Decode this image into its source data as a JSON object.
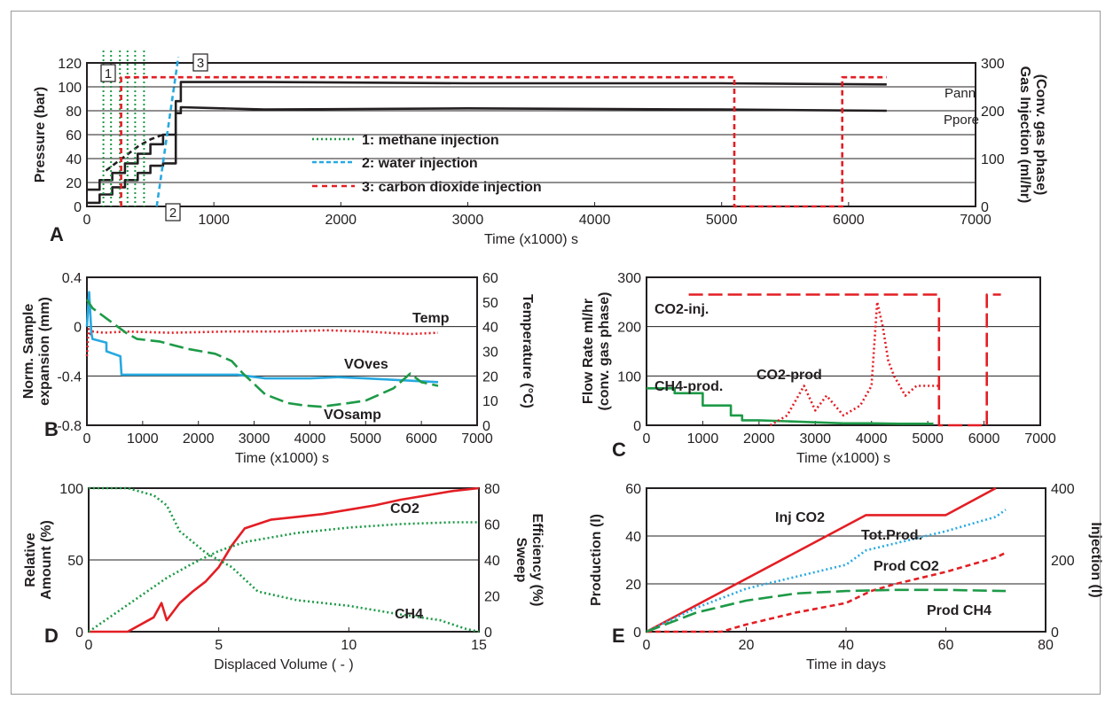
{
  "colors": {
    "black": "#231f20",
    "green": "#1d9a47",
    "cyan": "#27a9e1",
    "red": "#e31e24",
    "grid": "#231f20"
  },
  "chart_data": [
    {
      "panel": "A",
      "type": "line",
      "xlabel": "Time (x1000) s",
      "ylabel": "Pressure (bar)",
      "y2label": [
        "Gas Injection (ml/hr)",
        "(Conv. gas phase)"
      ],
      "xlim": [
        0,
        7000
      ],
      "ylim": [
        0,
        120
      ],
      "y2lim": [
        0,
        300
      ],
      "xticks": [
        "0",
        "1000",
        "2000",
        "3000",
        "4000",
        "5000",
        "6000",
        "7000"
      ],
      "yticks": [
        "0",
        "20",
        "40",
        "60",
        "80",
        "100",
        "120"
      ],
      "y2ticks": [
        "0",
        "100",
        "200",
        "300"
      ],
      "legend": [
        {
          "text": "1: methane injection",
          "color": "#1d9a47"
        },
        {
          "text": "2: water injection",
          "color": "#6b8cc7"
        },
        {
          "text": "3: carbon dioxide injection",
          "color": "#e31e24"
        }
      ],
      "annotations": [
        "1",
        "2",
        "3",
        "Pann",
        "Ppore"
      ],
      "series": [
        {
          "name": "Pann",
          "color": "#231f20",
          "style": "solid",
          "x": [
            0,
            100,
            100,
            200,
            200,
            300,
            300,
            400,
            400,
            500,
            500,
            600,
            600,
            700,
            700,
            740,
            740,
            1400,
            3000,
            5000,
            6300
          ],
          "y": [
            14,
            14,
            22,
            22,
            28,
            28,
            36,
            36,
            44,
            44,
            52,
            52,
            60,
            60,
            88,
            88,
            104,
            104,
            103,
            103,
            102
          ]
        },
        {
          "name": "Ppore",
          "color": "#231f20",
          "style": "solid",
          "x": [
            0,
            100,
            100,
            200,
            200,
            300,
            300,
            400,
            400,
            500,
            500,
            600,
            600,
            700,
            700,
            740,
            740,
            1400,
            3000,
            5000,
            6300
          ],
          "y": [
            3,
            3,
            10,
            10,
            16,
            16,
            22,
            22,
            28,
            28,
            34,
            34,
            36,
            36,
            78,
            78,
            83,
            81,
            82,
            81,
            80
          ]
        },
        {
          "name": "Pann-dashed",
          "color": "#231f20",
          "style": "dash",
          "x": [
            150,
            200,
            250,
            300,
            350,
            400,
            450,
            500,
            550,
            600
          ],
          "y": [
            30,
            34,
            38,
            42,
            46,
            50,
            53,
            56,
            58,
            60
          ]
        },
        {
          "name": "methane injection",
          "color": "#1d9a47",
          "style": "dot",
          "vlines": [
            130,
            190,
            260,
            320,
            380,
            450
          ]
        },
        {
          "name": "water injection",
          "color": "#27a9e1",
          "style": "dash",
          "x": [
            550,
            720
          ],
          "y": [
            0,
            125
          ]
        },
        {
          "name": "carbon dioxide injection",
          "color": "#e31e24",
          "style": "dash",
          "y2": true,
          "x": [
            270,
            270,
            5100,
            5100,
            5950,
            5950,
            6300
          ],
          "y": [
            0,
            270,
            270,
            0,
            0,
            270,
            270
          ]
        }
      ]
    },
    {
      "panel": "B",
      "type": "line",
      "xlabel": "Time (x1000) s",
      "ylabel": [
        "Norm. Sample",
        "expansion (mm)"
      ],
      "y2label": "Temperature (°C)",
      "xlim": [
        0,
        7000
      ],
      "ylim": [
        -0.8,
        0.4
      ],
      "y2lim": [
        0,
        60
      ],
      "xticks": [
        "0",
        "1000",
        "2000",
        "3000",
        "4000",
        "5000",
        "6000",
        "7000"
      ],
      "yticks": [
        "-0.8",
        "-0.4",
        "0",
        "0.4"
      ],
      "y2ticks": [
        "0",
        "10",
        "20",
        "30",
        "40",
        "50",
        "60"
      ],
      "series": [
        {
          "name": "Temp",
          "color": "#e31e24",
          "style": "dot",
          "y2": true,
          "x": [
            0,
            30,
            60,
            100,
            300,
            700,
            1500,
            2500,
            3500,
            4300,
            5000,
            5800,
            6300
          ],
          "y": [
            28,
            39,
            37,
            38,
            37.5,
            38,
            37.5,
            38,
            38,
            38.5,
            38,
            37,
            37.5
          ]
        },
        {
          "name": "VOves",
          "color": "#27a9e1",
          "style": "solid",
          "x": [
            0,
            40,
            80,
            100,
            350,
            350,
            600,
            620,
            640,
            1000,
            2000,
            2700,
            3200,
            4000,
            4500,
            5000,
            6300
          ],
          "y": [
            0.0,
            0.28,
            -0.05,
            -0.1,
            -0.13,
            -0.2,
            -0.24,
            -0.39,
            -0.39,
            -0.39,
            -0.39,
            -0.39,
            -0.42,
            -0.42,
            -0.41,
            -0.42,
            -0.45
          ]
        },
        {
          "name": "VOsamp",
          "color": "#1d9a47",
          "style": "longdash",
          "x": [
            0,
            100,
            400,
            700,
            900,
            1300,
            1800,
            2300,
            2600,
            2800,
            3200,
            3600,
            3900,
            4200,
            4700,
            5000,
            5500,
            5800,
            6000,
            6300
          ],
          "y": [
            0.22,
            0.15,
            0.05,
            -0.05,
            -0.1,
            -0.12,
            -0.18,
            -0.22,
            -0.28,
            -0.38,
            -0.55,
            -0.62,
            -0.64,
            -0.65,
            -0.62,
            -0.6,
            -0.5,
            -0.38,
            -0.45,
            -0.48
          ]
        }
      ],
      "annotations": [
        "Temp",
        "VOves",
        "VOsamp"
      ]
    },
    {
      "panel": "C",
      "type": "line",
      "xlabel": "Time (x1000) s",
      "ylabel": [
        "Flow Rate ml/hr",
        "(conv. gas phase)"
      ],
      "xlim": [
        0,
        7000
      ],
      "ylim": [
        0,
        300
      ],
      "xticks": [
        "0",
        "1000",
        "2000",
        "3000",
        "4000",
        "5000",
        "6000",
        "7000"
      ],
      "yticks": [
        "0",
        "100",
        "200",
        "300"
      ],
      "series": [
        {
          "name": "CO2-inj.",
          "color": "#e31e24",
          "style": "longdash",
          "x": [
            750,
            5200,
            5200,
            6050,
            6050,
            6300
          ],
          "y": [
            265,
            265,
            0,
            0,
            265,
            265
          ]
        },
        {
          "name": "CH4-prod.",
          "color": "#1d9a47",
          "style": "solid",
          "x": [
            0,
            500,
            500,
            1000,
            1000,
            1500,
            1500,
            1700,
            1700,
            2000,
            2500,
            3000,
            3500,
            4000,
            4500,
            5100
          ],
          "y": [
            75,
            75,
            65,
            65,
            40,
            40,
            20,
            20,
            10,
            10,
            8,
            6,
            4,
            4,
            3,
            3
          ]
        },
        {
          "name": "CO2-prod",
          "color": "#e31e24",
          "style": "dot",
          "x": [
            2200,
            2500,
            2800,
            3000,
            3200,
            3500,
            3800,
            4000,
            4100,
            4200,
            4300,
            4400,
            4600,
            4800,
            5200
          ],
          "y": [
            0,
            20,
            80,
            30,
            60,
            20,
            40,
            80,
            250,
            200,
            130,
            100,
            60,
            80,
            80
          ]
        }
      ],
      "annotations": [
        "CO2-inj.",
        "CH4-prod.",
        "CO2-prod"
      ]
    },
    {
      "panel": "D",
      "type": "line",
      "xlabel": "Displaced Volume ( - )",
      "ylabel": [
        "Relative",
        "Amount (%)"
      ],
      "y2label": [
        "Sweep",
        "Efficiency (%)"
      ],
      "xlim": [
        0,
        15
      ],
      "ylim": [
        0,
        100
      ],
      "y2lim": [
        0,
        80
      ],
      "xticks": [
        "0",
        "5",
        "10",
        "15"
      ],
      "yticks": [
        "0",
        "50",
        "100"
      ],
      "y2ticks": [
        "0",
        "20",
        "40",
        "60",
        "80"
      ],
      "series": [
        {
          "name": "CO2",
          "color": "#e31e24",
          "style": "solid",
          "x": [
            0,
            1.5,
            2.5,
            2.8,
            3.0,
            3.5,
            4.0,
            4.5,
            5.0,
            5.5,
            6.0,
            7.0,
            8.0,
            9.0,
            10.0,
            11.0,
            12.0,
            13.0,
            14.0,
            15.0
          ],
          "y": [
            0,
            0,
            10,
            20,
            8,
            20,
            28,
            35,
            45,
            60,
            72,
            78,
            80,
            82,
            85,
            88,
            92,
            95,
            98,
            100
          ]
        },
        {
          "name": "CH4",
          "color": "#1d9a47",
          "style": "dot",
          "x": [
            0,
            1.5,
            2.5,
            3.0,
            3.5,
            4.5,
            5.5,
            6.5,
            8.0,
            10.0,
            12.0,
            13.5,
            14.5,
            15.0
          ],
          "y": [
            100,
            100,
            95,
            88,
            70,
            55,
            45,
            28,
            22,
            18,
            12,
            8,
            2,
            0
          ]
        },
        {
          "name": "Sweep Efficiency",
          "color": "#1d9a47",
          "style": "dot",
          "y2": true,
          "x": [
            0,
            1,
            2,
            3,
            4,
            5,
            6,
            8,
            10,
            12,
            14,
            15
          ],
          "y": [
            0,
            10,
            20,
            30,
            38,
            45,
            50,
            55,
            58,
            60,
            61,
            61
          ]
        }
      ],
      "annotations": [
        "CO2",
        "CH4"
      ]
    },
    {
      "panel": "E",
      "type": "line",
      "xlabel": "Time in days",
      "ylabel": "Production (l)",
      "y2label": "Injection (l)",
      "xlim": [
        0,
        80
      ],
      "ylim": [
        0,
        60
      ],
      "y2lim": [
        0,
        400
      ],
      "xticks": [
        "0",
        "20",
        "40",
        "60",
        "80"
      ],
      "yticks": [
        "0",
        "20",
        "40",
        "60"
      ],
      "y2ticks": [
        "0",
        "200",
        "400"
      ],
      "series": [
        {
          "name": "Inj CO2",
          "color": "#e31e24",
          "style": "solid",
          "y2": true,
          "x": [
            0,
            44,
            60,
            70
          ],
          "y": [
            0,
            325,
            325,
            400
          ]
        },
        {
          "name": "Tot.Prod.",
          "color": "#27a9e1",
          "style": "dot",
          "x": [
            0,
            10,
            20,
            30,
            40,
            44,
            50,
            60,
            70,
            72
          ],
          "y": [
            0,
            10,
            18,
            23,
            28,
            34,
            37,
            42,
            48,
            51
          ]
        },
        {
          "name": "Prod CO2",
          "color": "#e31e24",
          "style": "dash",
          "x": [
            0,
            15,
            20,
            30,
            40,
            45,
            50,
            60,
            70,
            72
          ],
          "y": [
            0,
            0,
            3,
            8,
            12,
            17,
            20,
            25,
            31,
            33
          ]
        },
        {
          "name": "Prod CH4",
          "color": "#1d9a47",
          "style": "longdash",
          "x": [
            0,
            10,
            20,
            30,
            40,
            50,
            60,
            72
          ],
          "y": [
            0,
            8,
            13,
            16,
            17,
            17.5,
            17.5,
            17
          ]
        }
      ],
      "annotations": [
        "Inj CO2",
        "Tot.Prod.",
        "Prod CO2",
        "Prod CH4"
      ]
    }
  ]
}
